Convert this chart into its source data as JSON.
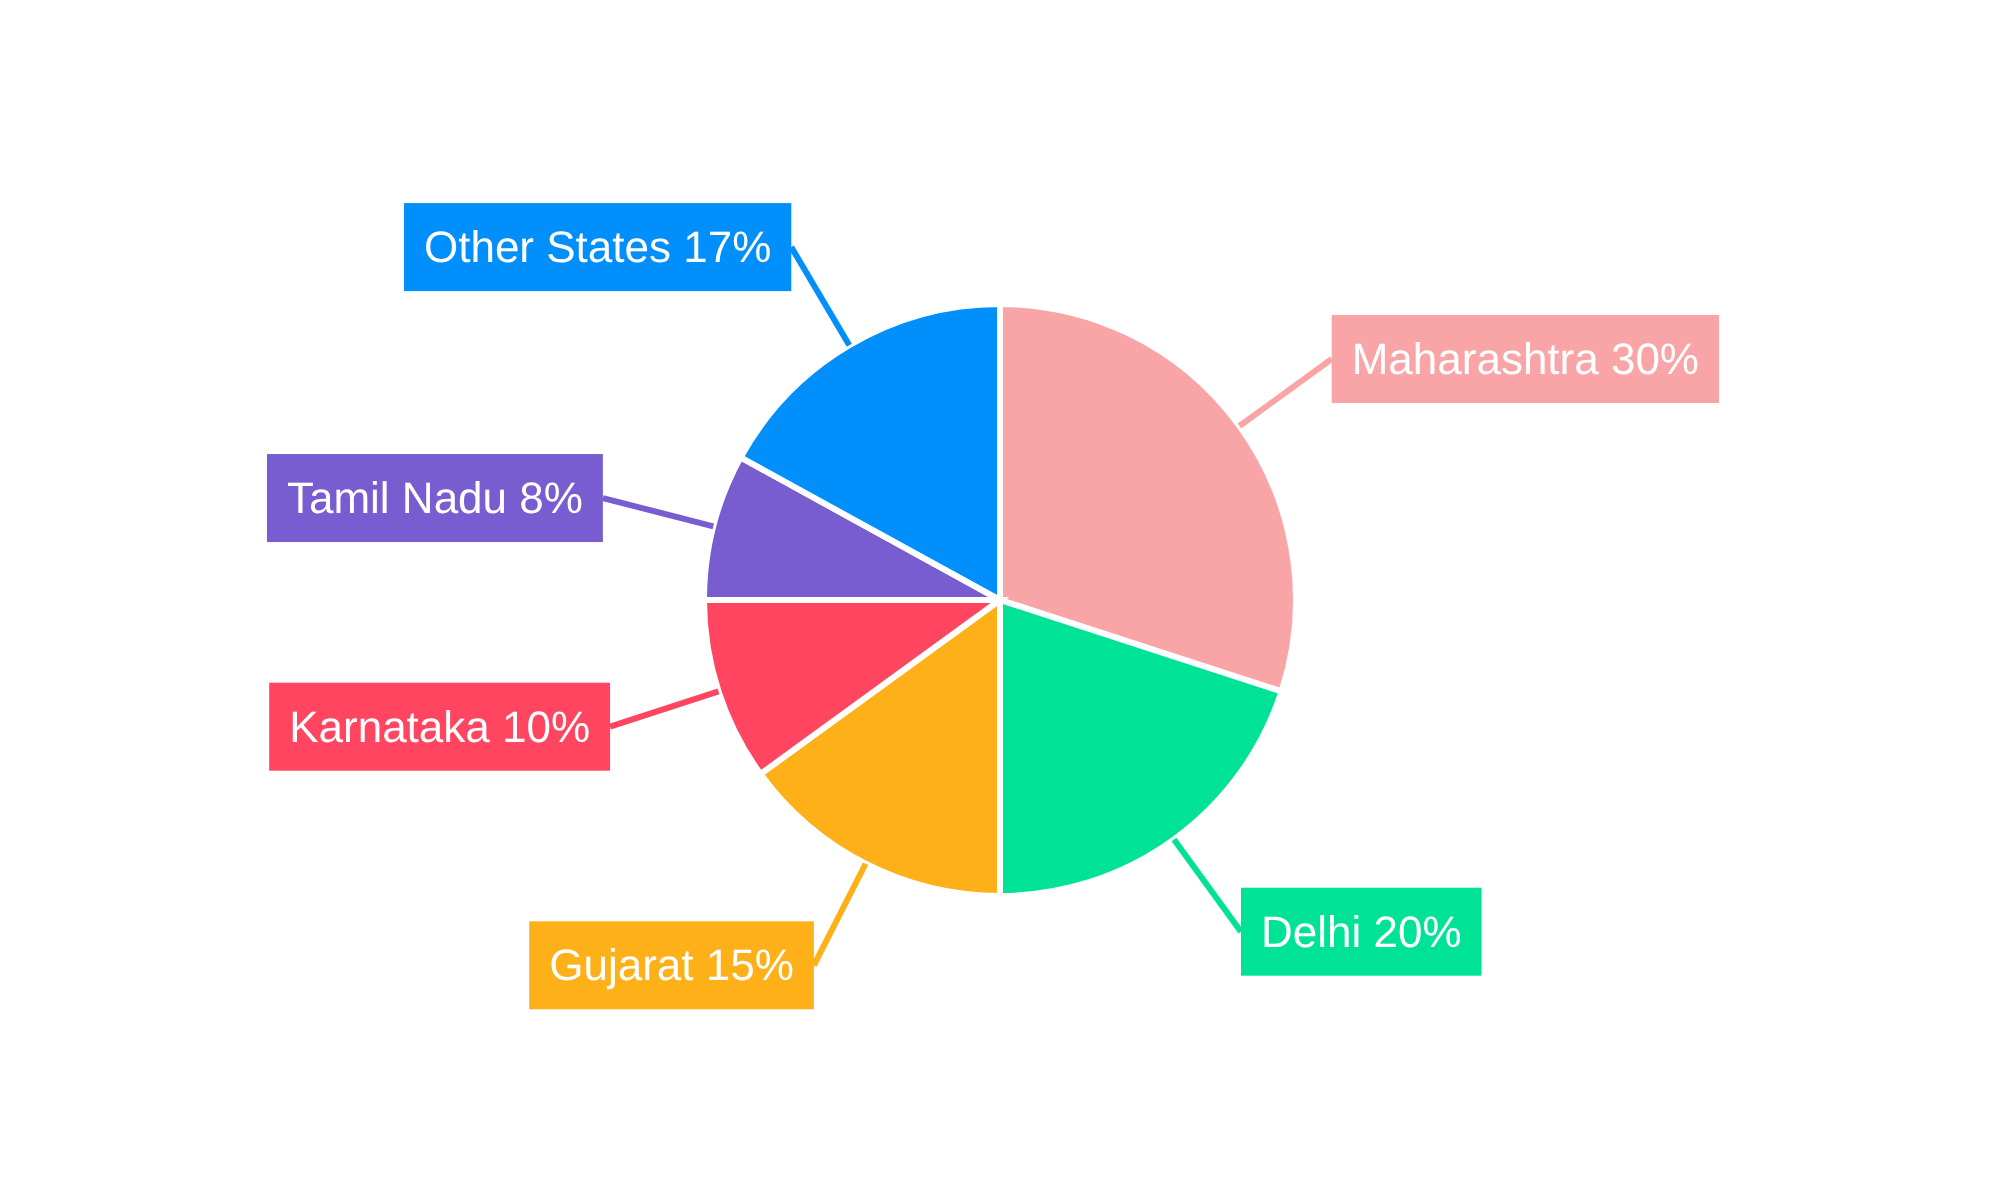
{
  "chart_data": {
    "type": "pie",
    "categories": [
      "Maharashtra",
      "Delhi",
      "Gujarat",
      "Karnataka",
      "Tamil Nadu",
      "Other States"
    ],
    "values": [
      30,
      20,
      15,
      10,
      8,
      17
    ],
    "value_labels": [
      "30%",
      "20%",
      "15%",
      "10%",
      "8%",
      "17%"
    ],
    "colors": [
      "#f9a5a7",
      "#00e396",
      "#feb019",
      "#ff4560",
      "#775dd0",
      "#008ffb"
    ],
    "legend": false
  }
}
